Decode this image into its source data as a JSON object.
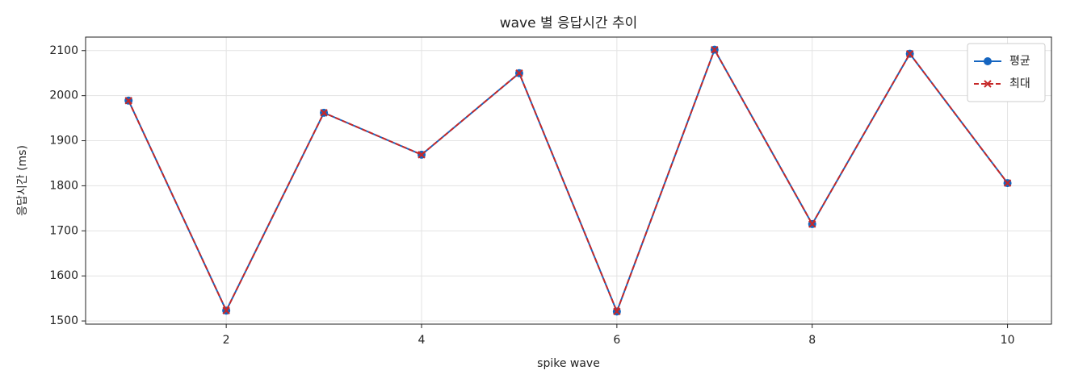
{
  "chart_data": {
    "type": "line",
    "title": "wave 별 응답시간 추이",
    "xlabel": "spike wave",
    "ylabel": "응답시간 (ms)",
    "x": [
      1,
      2,
      3,
      4,
      5,
      6,
      7,
      8,
      9,
      10
    ],
    "series": [
      {
        "name": "평균",
        "color": "#1565c0",
        "values": [
          1989,
          1523,
          1962,
          1869,
          2050,
          1521,
          2102,
          1715,
          2093,
          1806
        ]
      },
      {
        "name": "최대",
        "color": "#c62828",
        "values": [
          1989,
          1523,
          1962,
          1869,
          2050,
          1521,
          2102,
          1715,
          2093,
          1806
        ]
      }
    ],
    "xlim": [
      0.56,
      10.45
    ],
    "xticks": [
      2,
      4,
      6,
      8,
      10
    ],
    "ylim": [
      1493,
      2130
    ],
    "yticks": [
      1500,
      1600,
      1700,
      1800,
      1900,
      2000,
      2100
    ],
    "grid": true,
    "legend": "upper right"
  }
}
